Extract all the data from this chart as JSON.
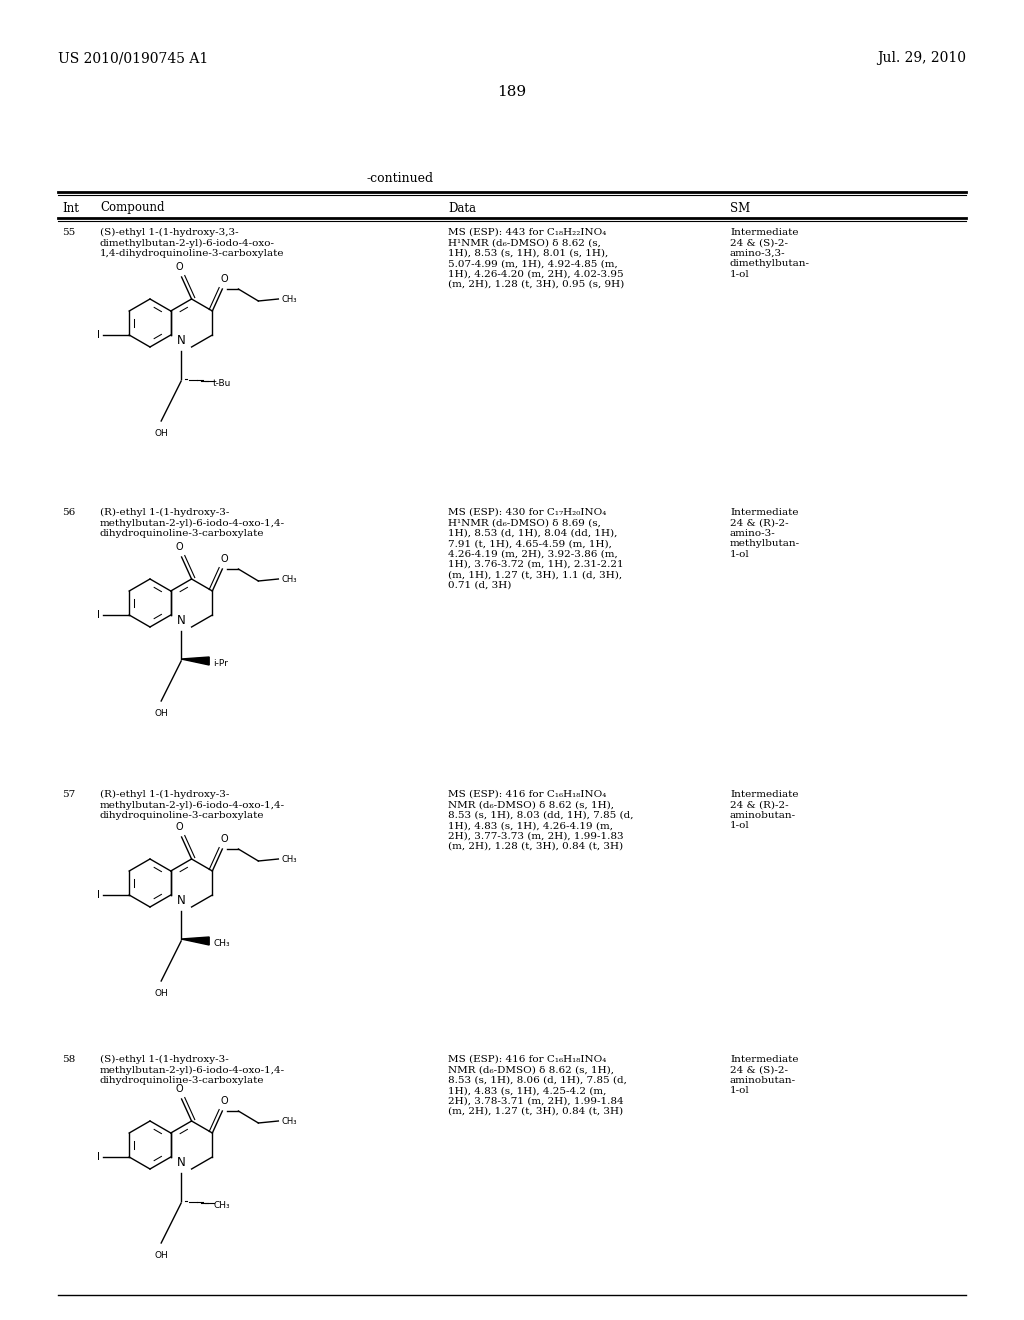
{
  "page_number": "189",
  "header_left": "US 2010/0190745 A1",
  "header_right": "Jul. 29, 2010",
  "continued_label": "-continued",
  "table_headers": [
    "Int",
    "Compound",
    "Data",
    "SM"
  ],
  "background_color": "#ffffff",
  "text_color": "#000000",
  "rows": [
    {
      "int": "55",
      "compound_name": "(S)-ethyl 1-(1-hydroxy-3,3-\ndimethylbutan-2-yl)-6-iodo-4-oxo-\n1,4-dihydroquinoline-3-carboxylate",
      "data": "MS (ESP): 443 for C₁₈H₂₂INO₄\nH¹NMR (d₆-DMSO) δ 8.62 (s,\n1H), 8.53 (s, 1H), 8.01 (s, 1H),\n5.07-4.99 (m, 1H), 4.92-4.85 (m,\n1H), 4.26-4.20 (m, 2H), 4.02-3.95\n(m, 2H), 1.28 (t, 3H), 0.95 (s, 9H)",
      "sm": "Intermediate\n24 & (S)-2-\namino-3,3-\ndimethylbutan-\n1-ol",
      "substituent": "t-Bu",
      "stereo": "S"
    },
    {
      "int": "56",
      "compound_name": "(R)-ethyl 1-(1-hydroxy-3-\nmethylbutan-2-yl)-6-iodo-4-oxo-1,4-\ndihydroquinoline-3-carboxylate",
      "data": "MS (ESP): 430 for C₁₇H₂₀INO₄\nH¹NMR (d₆-DMSO) δ 8.69 (s,\n1H), 8.53 (d, 1H), 8.04 (dd, 1H),\n7.91 (t, 1H), 4.65-4.59 (m, 1H),\n4.26-4.19 (m, 2H), 3.92-3.86 (m,\n1H), 3.76-3.72 (m, 1H), 2.31-2.21\n(m, 1H), 1.27 (t, 3H), 1.1 (d, 3H),\n0.71 (d, 3H)",
      "sm": "Intermediate\n24 & (R)-2-\namino-3-\nmethylbutan-\n1-ol",
      "substituent": "i-Pr",
      "stereo": "R"
    },
    {
      "int": "57",
      "compound_name": "(R)-ethyl 1-(1-hydroxy-3-\nmethylbutan-2-yl)-6-iodo-4-oxo-1,4-\ndihydroquinoline-3-carboxylate",
      "data": "MS (ESP): 416 for C₁₆H₁₈INO₄\nNMR (d₆-DMSO) δ 8.62 (s, 1H),\n8.53 (s, 1H), 8.03 (dd, 1H), 7.85 (d,\n1H), 4.83 (s, 1H), 4.26-4.19 (m,\n2H), 3.77-3.73 (m, 2H), 1.99-1.83\n(m, 2H), 1.28 (t, 3H), 0.84 (t, 3H)",
      "sm": "Intermediate\n24 & (R)-2-\naminobutan-\n1-ol",
      "substituent": "CH₃",
      "stereo": "R"
    },
    {
      "int": "58",
      "compound_name": "(S)-ethyl 1-(1-hydroxy-3-\nmethylbutan-2-yl)-6-iodo-4-oxo-1,4-\ndihydroquinoline-3-carboxylate",
      "data": "MS (ESP): 416 for C₁₆H₁₈INO₄\nNMR (d₆-DMSO) δ 8.62 (s, 1H),\n8.53 (s, 1H), 8.06 (d, 1H), 7.85 (d,\n1H), 4.83 (s, 1H), 4.25-4.2 (m,\n2H), 3.78-3.71 (m, 2H), 1.99-1.84\n(m, 2H), 1.27 (t, 3H), 0.84 (t, 3H)",
      "sm": "Intermediate\n24 & (S)-2-\naminobutan-\n1-ol",
      "substituent": "CH₃",
      "stereo": "S"
    }
  ]
}
